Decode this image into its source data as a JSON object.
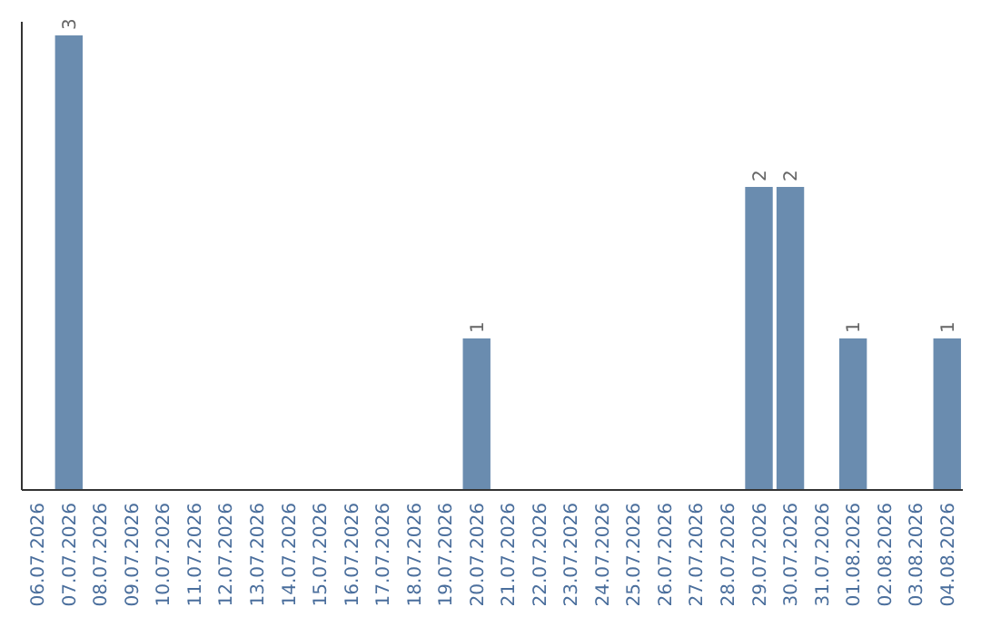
{
  "chart_data": {
    "type": "bar",
    "categories": [
      "06.07.2026",
      "07.07.2026",
      "08.07.2026",
      "09.07.2026",
      "10.07.2026",
      "11.07.2026",
      "12.07.2026",
      "13.07.2026",
      "14.07.2026",
      "15.07.2026",
      "16.07.2026",
      "17.07.2026",
      "18.07.2026",
      "19.07.2026",
      "20.07.2026",
      "21.07.2026",
      "22.07.2026",
      "23.07.2026",
      "24.07.2026",
      "25.07.2026",
      "26.07.2026",
      "27.07.2026",
      "28.07.2026",
      "29.07.2026",
      "30.07.2026",
      "31.07.2026",
      "01.08.2026",
      "02.08.2026",
      "03.08.2026",
      "04.08.2026"
    ],
    "values": [
      0,
      3,
      0,
      0,
      0,
      0,
      0,
      0,
      0,
      0,
      0,
      0,
      0,
      0,
      1,
      0,
      0,
      0,
      0,
      0,
      0,
      0,
      0,
      2,
      2,
      0,
      1,
      0,
      0,
      1
    ],
    "value_labels": [
      null,
      "3",
      null,
      null,
      null,
      null,
      null,
      null,
      null,
      null,
      null,
      null,
      null,
      null,
      "1",
      null,
      null,
      null,
      null,
      null,
      null,
      null,
      null,
      "2",
      "2",
      null,
      "1",
      null,
      null,
      "1"
    ],
    "color": "#6a8caf"
  }
}
